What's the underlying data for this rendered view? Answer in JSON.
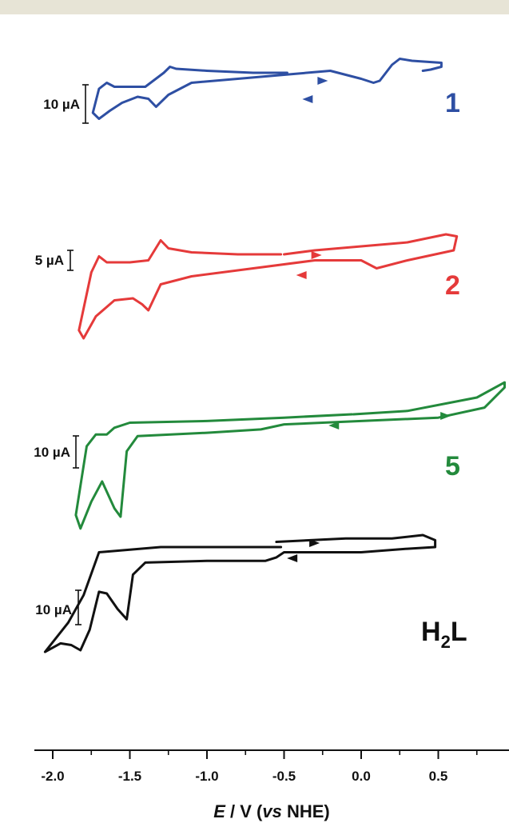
{
  "chart_data": {
    "type": "line",
    "title": "",
    "xlabel": "E / V (vs NHE)",
    "xlabel_parts": [
      "E",
      " / V (",
      "vs",
      " NHE)"
    ],
    "ylabel": "",
    "xlim": [
      -2.1,
      0.93
    ],
    "xticks": [
      {
        "value": -2.0,
        "label": "-2.0"
      },
      {
        "value": -1.5,
        "label": "-1.5"
      },
      {
        "value": -1.0,
        "label": "-1.0"
      },
      {
        "value": -0.5,
        "label": "-0.5"
      },
      {
        "value": 0.0,
        "label": "0.0"
      },
      {
        "value": 0.5,
        "label": "0.5"
      }
    ],
    "minor_xticks": [
      -1.75,
      -1.25,
      -0.75,
      -0.25,
      0.25,
      0.75
    ],
    "grid": false,
    "stacked_offsets": true,
    "series": [
      {
        "name": "1",
        "color": "#2e4fa3",
        "scale_label": "10 µA",
        "scale_value_uA": 10,
        "peaks": {
          "cathodic_V": [
            -1.72,
            -1.32,
            0.12
          ],
          "anodic_V": [
            -1.62,
            -1.24,
            0.25
          ]
        },
        "x": [
          -0.48,
          -0.7,
          -1.0,
          -1.2,
          -1.24,
          -1.28,
          -1.4,
          -1.6,
          -1.65,
          -1.7,
          -1.74,
          -1.7,
          -1.63,
          -1.55,
          -1.45,
          -1.38,
          -1.33,
          -1.25,
          -1.1,
          -0.8,
          -0.5,
          -0.2,
          0.0,
          0.08,
          0.12,
          0.2,
          0.25,
          0.33,
          0.52,
          0.52,
          0.45,
          0.4
        ],
        "y": [
          0,
          0,
          0.5,
          1,
          1.5,
          0,
          -3.5,
          -3.5,
          -2.5,
          -4,
          -10,
          -11.5,
          -9.5,
          -7.5,
          -6,
          -6.5,
          -8.5,
          -5.5,
          -2.5,
          -1.5,
          -0.5,
          0.5,
          -1.5,
          -2.5,
          -2,
          2,
          3.5,
          3,
          2.5,
          1.5,
          0.8,
          0.5
        ]
      },
      {
        "name": "2",
        "color": "#e53a3a",
        "scale_label": "5 µA",
        "scale_value_uA": 5,
        "peaks": {
          "cathodic_V": [
            -1.38
          ],
          "anodic_V": [
            -1.3
          ]
        },
        "x": [
          -0.52,
          -0.8,
          -1.1,
          -1.25,
          -1.3,
          -1.38,
          -1.5,
          -1.65,
          -1.7,
          -1.75,
          -1.83,
          -1.8,
          -1.72,
          -1.6,
          -1.48,
          -1.42,
          -1.38,
          -1.3,
          -1.1,
          -0.7,
          -0.3,
          0.0,
          0.1,
          0.3,
          0.6,
          0.62,
          0.55,
          0.3,
          0.0,
          -0.3,
          -0.5
        ],
        "y": [
          0,
          0,
          0.5,
          1.5,
          3.5,
          -1.5,
          -2,
          -2,
          -0.5,
          -4.5,
          -19,
          -21,
          -15.5,
          -11.5,
          -11,
          -12.5,
          -14,
          -7.5,
          -5.5,
          -3.5,
          -1.5,
          -1.5,
          -3.5,
          -1.5,
          1,
          4.5,
          5,
          3,
          2,
          1,
          0
        ]
      },
      {
        "name": "5",
        "color": "#238a3c",
        "scale_label": "10 µA",
        "scale_value_uA": 10,
        "peaks": {
          "cathodic_V": [
            -1.8,
            -1.56
          ],
          "anodic_V": []
        },
        "x": [
          -0.06,
          -0.5,
          -1.0,
          -1.5,
          -1.6,
          -1.65,
          -1.72,
          -1.78,
          -1.85,
          -1.82,
          -1.75,
          -1.68,
          -1.6,
          -1.56,
          -1.52,
          -1.45,
          -1.0,
          -0.65,
          -0.5,
          0.0,
          0.5,
          0.8,
          0.93,
          0.93,
          0.75,
          0.3,
          -0.05
        ],
        "y": [
          0,
          -1,
          -2,
          -2.5,
          -4,
          -6,
          -6,
          -9.5,
          -30,
          -34,
          -26,
          -20,
          -28,
          -30.5,
          -11,
          -6.5,
          -5.5,
          -4.5,
          -3,
          -2,
          -1,
          2,
          8,
          9.5,
          5,
          1,
          0
        ]
      },
      {
        "name": "H2L",
        "color": "#111111",
        "scale_label": "10 µA",
        "scale_value_uA": 10,
        "peaks": {
          "cathodic_V": [
            -1.82,
            -1.52
          ],
          "anodic_V": []
        },
        "x": [
          -0.52,
          -0.6,
          -0.8,
          -1.0,
          -1.3,
          -1.7,
          -1.8,
          -1.9,
          -2.05,
          -1.95,
          -1.88,
          -1.82,
          -1.76,
          -1.7,
          -1.65,
          -1.58,
          -1.52,
          -1.48,
          -1.4,
          -1.0,
          -0.7,
          -0.62,
          -0.55,
          -0.5,
          0.0,
          0.3,
          0.48,
          0.48,
          0.4,
          0.2,
          -0.1,
          -0.55
        ],
        "y": [
          0,
          0,
          0,
          0,
          0,
          -1.5,
          -14,
          -22,
          -30.5,
          -28,
          -28.5,
          -30,
          -24,
          -13,
          -13.5,
          -18,
          -21,
          -8,
          -4.5,
          -4,
          -4,
          -4,
          -3,
          -1.5,
          -1.5,
          -0.5,
          0,
          2,
          3.5,
          2.5,
          2.5,
          1.5
        ]
      }
    ]
  },
  "labels": {
    "s1": "1",
    "s2": "2",
    "s5": "5",
    "sH2L_main": "H",
    "sH2L_sub": "2",
    "sH2L_end": "L"
  }
}
